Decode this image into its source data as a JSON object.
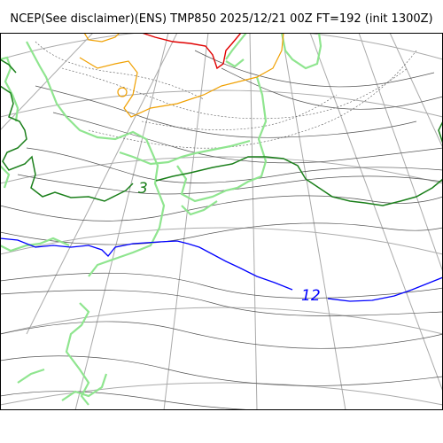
{
  "title": "NCEP(See disclaimer)(ENS) TMP850 2025/12/21 00Z FT=192 (init 1300Z)",
  "contour_labels": [
    {
      "text": "3",
      "color": "#1a7f1a"
    },
    {
      "text": "12",
      "color": "#0000ff"
    }
  ],
  "colors": {
    "coastline": "#8fe58f",
    "isotherm_3": "#1a7f1a",
    "isotherm_12": "#0000ff",
    "isotherm_minus6": "#f0a000",
    "isotherm_minus15": "#e00000",
    "contours": "#555555",
    "graticule": "#aaaaaa",
    "frame": "#000000"
  }
}
